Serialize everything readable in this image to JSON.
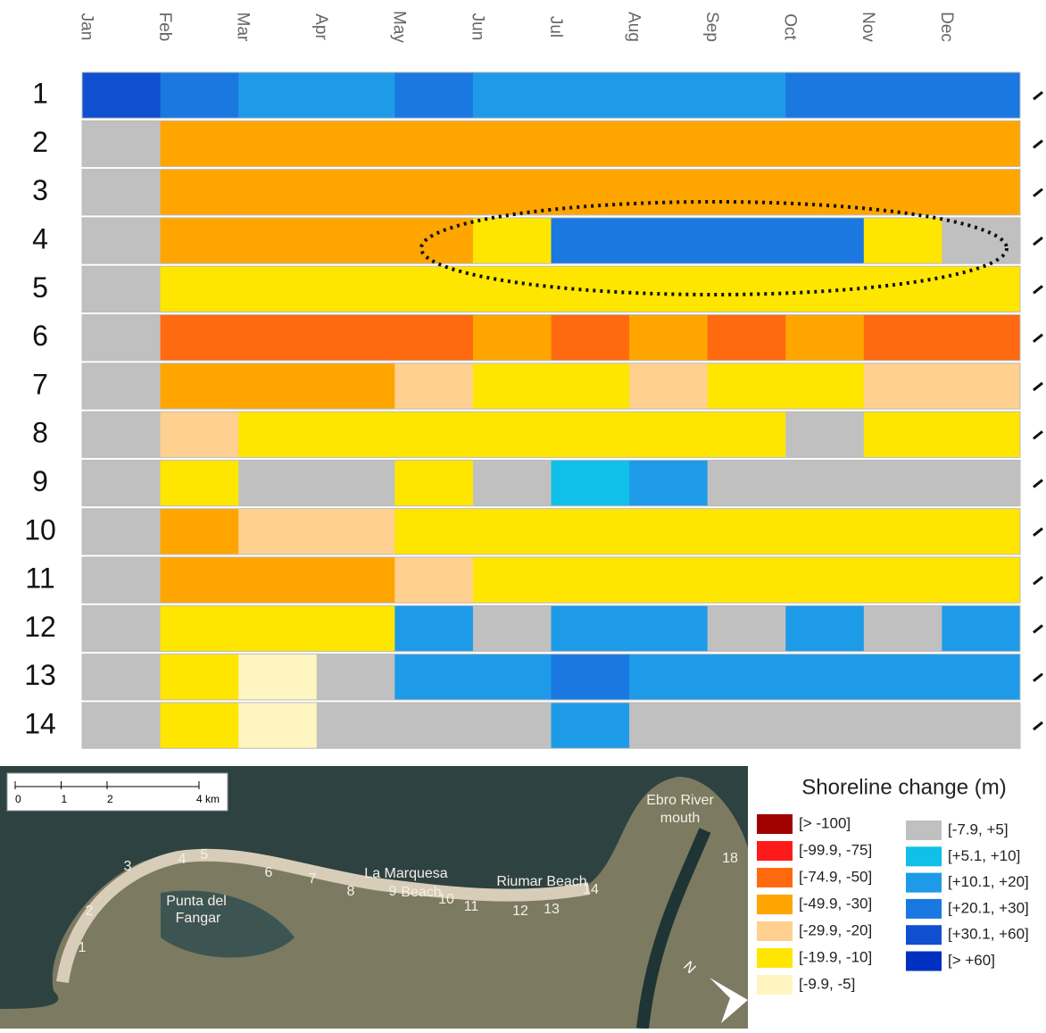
{
  "chart_data": {
    "type": "heatmap",
    "x": [
      "Jan",
      "Feb",
      "Mar",
      "Apr",
      "May",
      "Jun",
      "Jul",
      "Aug",
      "Sep",
      "Oct",
      "Nov",
      "Dec"
    ],
    "rows": [
      1,
      2,
      3,
      4,
      5,
      6,
      7,
      8,
      9,
      10,
      11,
      12,
      13,
      14
    ],
    "values": [
      [
        45,
        25,
        15,
        15,
        25,
        15,
        15,
        15,
        15,
        25,
        25,
        25
      ],
      [
        0,
        -40,
        -40,
        -40,
        -40,
        -40,
        -40,
        -40,
        -40,
        -40,
        -40,
        -40
      ],
      [
        0,
        -40,
        -40,
        -40,
        -40,
        -40,
        -40,
        -40,
        -40,
        -40,
        -40,
        -40
      ],
      [
        0,
        -40,
        -40,
        -40,
        -40,
        -15,
        25,
        25,
        25,
        25,
        -15,
        0
      ],
      [
        0,
        -15,
        -15,
        -15,
        -15,
        -15,
        -15,
        -15,
        -15,
        -15,
        -15,
        -15
      ],
      [
        0,
        -60,
        -60,
        -60,
        -60,
        -40,
        -60,
        -40,
        -60,
        -40,
        -60,
        -60
      ],
      [
        0,
        -40,
        -40,
        -40,
        -25,
        -15,
        -15,
        -25,
        -15,
        -15,
        -25,
        -25
      ],
      [
        0,
        -25,
        -15,
        -15,
        -15,
        -15,
        -15,
        -15,
        -15,
        0,
        -15,
        -15
      ],
      [
        0,
        -15,
        0,
        0,
        -15,
        0,
        8,
        15,
        0,
        0,
        0,
        0
      ],
      [
        0,
        -40,
        -25,
        -25,
        -15,
        -15,
        -15,
        -15,
        -15,
        -15,
        -15,
        -15
      ],
      [
        0,
        -40,
        -40,
        -40,
        -25,
        -15,
        -15,
        -15,
        -15,
        -15,
        -15,
        -15
      ],
      [
        0,
        -15,
        -15,
        -15,
        15,
        0,
        15,
        15,
        0,
        15,
        0,
        15
      ],
      [
        0,
        -15,
        -7,
        0,
        15,
        15,
        25,
        15,
        15,
        15,
        15,
        15
      ],
      [
        0,
        -15,
        -7,
        0,
        0,
        0,
        15,
        0,
        0,
        0,
        0,
        0
      ]
    ],
    "legend_title": "Shoreline change (m)",
    "legend": [
      {
        "label": "[> -100]",
        "color": "#a00000"
      },
      {
        "label": "[-99.9, -75]",
        "color": "#ff1a1a",
        "range": [
          -99.9,
          -75
        ]
      },
      {
        "label": "[-74.9, -50]",
        "color": "#ff6a10",
        "range": [
          -74.9,
          -50
        ]
      },
      {
        "label": "[-49.9, -30]",
        "color": "#ffa500",
        "range": [
          -49.9,
          -30
        ]
      },
      {
        "label": "[-29.9, -20]",
        "color": "#ffd090",
        "range": [
          -29.9,
          -20
        ]
      },
      {
        "label": "[-19.9, -10]",
        "color": "#ffe600",
        "range": [
          -19.9,
          -10
        ]
      },
      {
        "label": "[-9.9, -5]",
        "color": "#fff5c0",
        "range": [
          -9.9,
          -5
        ]
      },
      {
        "label": "[-7.9, +5]",
        "color": "#c0c0c0",
        "range": [
          -7.9,
          5
        ]
      },
      {
        "label": "[+5.1, +10]",
        "color": "#10c0e8",
        "range": [
          5.1,
          10
        ]
      },
      {
        "label": "[+10.1, +20]",
        "color": "#1e9be8",
        "range": [
          10.1,
          20
        ]
      },
      {
        "label": "[+20.1, +30]",
        "color": "#1a78e0",
        "range": [
          20.1,
          30
        ]
      },
      {
        "label": "[+30.1, +60]",
        "color": "#1050d0",
        "range": [
          30.1,
          60
        ]
      },
      {
        "label": "[> +60]",
        "color": "#0030c0"
      }
    ]
  },
  "map": {
    "scale_ticks": [
      0,
      1,
      2,
      {
        "value": 4,
        "label": "4 km"
      }
    ],
    "sites": [
      1,
      2,
      3,
      4,
      5,
      6,
      7,
      8,
      9,
      10,
      11,
      12,
      13,
      14,
      18
    ],
    "places": [
      "Punta del",
      "Fangar",
      "La Marquesa",
      "Beach",
      "Riumar Beach",
      "Ebro River",
      "mouth"
    ],
    "north": "N"
  }
}
